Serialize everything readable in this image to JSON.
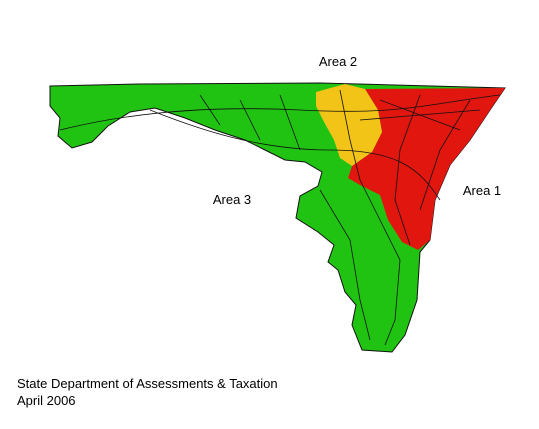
{
  "map": {
    "regions": [
      {
        "label": "Area 2"
      },
      {
        "label": "Area 1"
      },
      {
        "label": "Area 3"
      }
    ],
    "footer": {
      "source": "State Department of Assessments & Taxation",
      "date": "April 2006"
    }
  }
}
